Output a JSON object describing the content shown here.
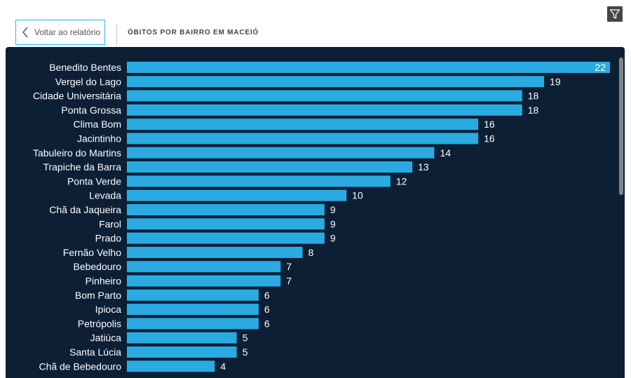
{
  "header": {
    "back_label": "Voltar ao relatório",
    "title": "ÓBITOS POR BAIRRO EM MACEIÓ"
  },
  "icons": {
    "back": "chevron-left-icon",
    "filter": "filter-icon"
  },
  "colors": {
    "bar": "#29abe2",
    "panel_bg": "#0c1f35",
    "label": "#ffffff"
  },
  "chart_data": {
    "type": "bar",
    "orientation": "horizontal",
    "categories": [
      "Benedito Bentes",
      "Vergel do Lago",
      "Cidade Universitária",
      "Ponta Grossa",
      "Clima Bom",
      "Jacintinho",
      "Tabuleiro do Martins",
      "Trapiche da Barra",
      "Ponta Verde",
      "Levada",
      "Chã da Jaqueira",
      "Farol",
      "Prado",
      "Fernão Velho",
      "Bebedouro",
      "Pinheiro",
      "Bom Parto",
      "Ipioca",
      "Petrópolis",
      "Jatiúca",
      "Santa Lúcia",
      "Chã de Bebedouro"
    ],
    "values": [
      22,
      19,
      18,
      18,
      16,
      16,
      14,
      13,
      12,
      10,
      9,
      9,
      9,
      8,
      7,
      7,
      6,
      6,
      6,
      5,
      5,
      4
    ],
    "xlim": [
      0,
      22
    ],
    "grid": false,
    "legend": "none",
    "data_labels": true
  }
}
